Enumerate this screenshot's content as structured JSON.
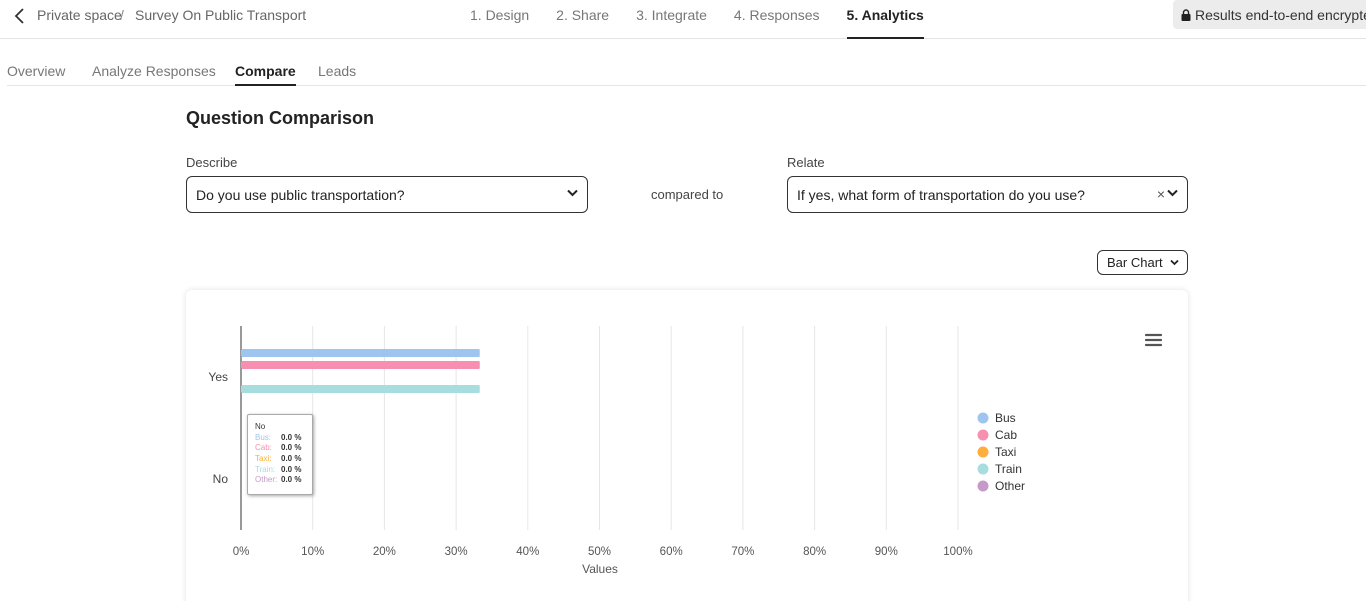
{
  "breadcrumb": {
    "workspace": "Private space",
    "separator": "/",
    "survey": "Survey On Public Transport"
  },
  "steps": [
    {
      "label": "1. Design",
      "active": false
    },
    {
      "label": "2. Share",
      "active": false
    },
    {
      "label": "3. Integrate",
      "active": false
    },
    {
      "label": "4. Responses",
      "active": false
    },
    {
      "label": "5. Analytics",
      "active": true
    }
  ],
  "encryption_badge": "Results end-to-end encrypted",
  "subtabs": [
    {
      "label": "Overview",
      "active": false
    },
    {
      "label": "Analyze Responses",
      "active": false
    },
    {
      "label": "Compare",
      "active": true
    },
    {
      "label": "Leads",
      "active": false
    }
  ],
  "page_title": "Question Comparison",
  "describe": {
    "label": "Describe",
    "value": "Do you use public transportation?"
  },
  "compared_to": "compared to",
  "relate": {
    "label": "Relate",
    "value": "If yes, what form of transportation do you use?",
    "clear_symbol": "×"
  },
  "chart_type_select": "Bar Chart",
  "chart_data": {
    "type": "bar",
    "orientation": "horizontal",
    "categories": [
      "Yes",
      "No"
    ],
    "series": [
      {
        "name": "Bus",
        "color": "#9ec5ef",
        "values": [
          33.3,
          0
        ]
      },
      {
        "name": "Cab",
        "color": "#f78fb0",
        "values": [
          33.3,
          0
        ]
      },
      {
        "name": "Taxi",
        "color": "#ffad3b",
        "values": [
          0,
          0
        ]
      },
      {
        "name": "Train",
        "color": "#a8dde0",
        "values": [
          33.3,
          0
        ]
      },
      {
        "name": "Other",
        "color": "#c59acb",
        "values": [
          0,
          0
        ]
      }
    ],
    "x_ticks": [
      "0%",
      "10%",
      "20%",
      "30%",
      "40%",
      "50%",
      "60%",
      "70%",
      "80%",
      "90%",
      "100%"
    ],
    "xlabel": "Values",
    "xlim": [
      0,
      100
    ],
    "grid": true,
    "legend_position": "right",
    "menu_icon": "hamburger-icon"
  },
  "tooltip": {
    "category": "No",
    "rows": [
      {
        "name": "Bus:",
        "value": "0.0 %",
        "color": "#9ec5ef"
      },
      {
        "name": "Cab:",
        "value": "0.0 %",
        "color": "#f78fb0"
      },
      {
        "name": "Taxi:",
        "value": "0.0 %",
        "color": "#ffad3b"
      },
      {
        "name": "Train:",
        "value": "0.0 %",
        "color": "#a8dde0"
      },
      {
        "name": "Other:",
        "value": "0.0 %",
        "color": "#c59acb"
      }
    ]
  }
}
